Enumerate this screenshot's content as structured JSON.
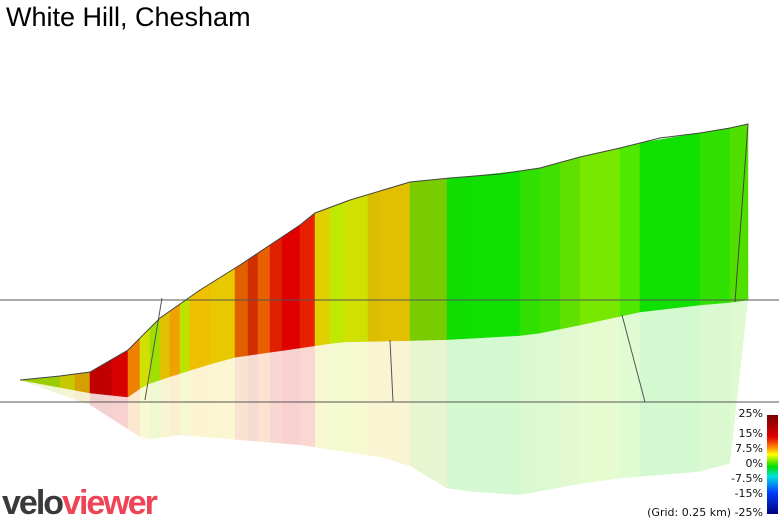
{
  "title": "White Hill, Chesham",
  "legend": {
    "labels": [
      "25%",
      "15%",
      "7.5%",
      "0%",
      "-7.5%",
      "-15%",
      "-25%"
    ],
    "grid_label": "(Grid: 0.25 km)"
  },
  "logo": {
    "part1": "velo",
    "part2": "viewer"
  },
  "colors": {
    "grid": "#555555",
    "outline": "#444444",
    "logo_dark": "#3a3a3a",
    "logo_red": "#ee4455"
  },
  "segment_colors": [
    "#9acd00",
    "#c8c800",
    "#d4a000",
    "#c00000",
    "#d80000",
    "#f08000",
    "#d0e000",
    "#a0e000",
    "#e0c000",
    "#f0a000",
    "#c0e000",
    "#f0c000",
    "#e8c800",
    "#e06000",
    "#d03000",
    "#e86000",
    "#e02000",
    "#e00000",
    "#e82000",
    "#e0d000",
    "#c0e800",
    "#d0e000",
    "#d8c000",
    "#e0c000",
    "#78cc00",
    "#10dd00",
    "#10e000",
    "#30e000",
    "#40e000",
    "#60e000",
    "#78e800",
    "#50e800",
    "#10e000",
    "#30e000",
    "#50e000"
  ]
}
